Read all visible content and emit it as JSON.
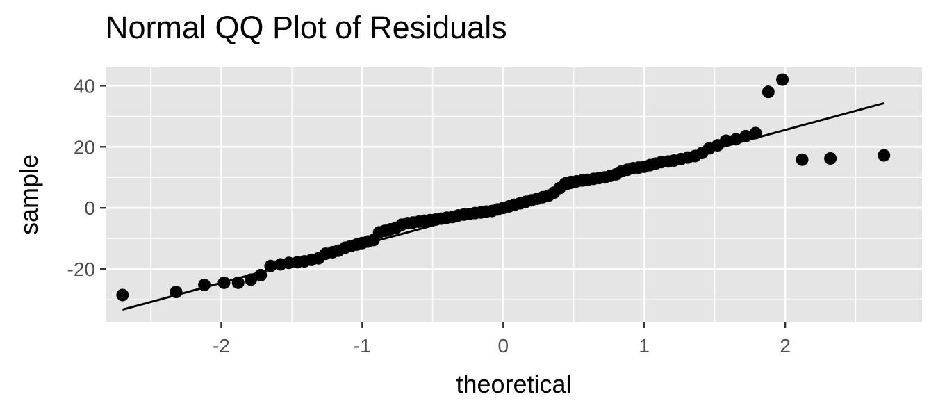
{
  "chart_data": {
    "type": "scatter",
    "title": "Normal QQ Plot of Residuals",
    "xlabel": "theoretical",
    "ylabel": "sample",
    "xlim": [
      -2.82,
      2.97
    ],
    "ylim": [
      -37.5,
      46.0
    ],
    "x_ticks": [
      -2,
      -1,
      0,
      1,
      2
    ],
    "x_tick_labels": [
      "-2",
      "-1",
      "0",
      "1",
      "2"
    ],
    "y_ticks": [
      -20,
      0,
      20,
      40
    ],
    "y_tick_labels": [
      "-20",
      "0",
      "20",
      "40"
    ],
    "grid": true,
    "legend": "none",
    "reference_line": {
      "x": [
        -2.7,
        2.7
      ],
      "y": [
        -33.3,
        34.3
      ]
    },
    "series": [
      {
        "name": "residuals",
        "x": [
          -2.7,
          -2.32,
          -2.12,
          -1.98,
          -1.88,
          -1.79,
          -1.72,
          -1.65,
          -1.58,
          -1.52,
          -1.46,
          -1.41,
          -1.36,
          -1.31,
          -1.26,
          -1.21,
          -1.17,
          -1.12,
          -1.08,
          -1.04,
          -1.0,
          -0.96,
          -0.92,
          -0.88,
          -0.84,
          -0.8,
          -0.76,
          -0.72,
          -0.68,
          -0.64,
          -0.6,
          -0.56,
          -0.52,
          -0.48,
          -0.44,
          -0.4,
          -0.36,
          -0.32,
          -0.28,
          -0.24,
          -0.2,
          -0.16,
          -0.12,
          -0.08,
          -0.04,
          0.0,
          0.04,
          0.08,
          0.12,
          0.16,
          0.2,
          0.24,
          0.28,
          0.32,
          0.36,
          0.4,
          0.44,
          0.48,
          0.52,
          0.56,
          0.6,
          0.64,
          0.68,
          0.72,
          0.76,
          0.8,
          0.84,
          0.88,
          0.92,
          0.96,
          1.0,
          1.04,
          1.08,
          1.12,
          1.17,
          1.21,
          1.26,
          1.31,
          1.36,
          1.41,
          1.46,
          1.52,
          1.58,
          1.65,
          1.72,
          1.79,
          1.88,
          1.98,
          2.12,
          2.32,
          2.7
        ],
        "y": [
          -28.5,
          -27.5,
          -25.2,
          -24.5,
          -24.5,
          -23.5,
          -22.0,
          -19.0,
          -18.5,
          -18.0,
          -17.8,
          -17.5,
          -17.0,
          -16.5,
          -15.0,
          -14.5,
          -14.0,
          -13.0,
          -12.5,
          -12.0,
          -11.5,
          -11.0,
          -10.5,
          -8.0,
          -7.5,
          -7.0,
          -6.5,
          -5.5,
          -5.0,
          -4.8,
          -4.5,
          -4.2,
          -4.0,
          -3.8,
          -3.5,
          -3.2,
          -3.0,
          -2.5,
          -2.2,
          -2.0,
          -1.7,
          -1.5,
          -1.2,
          -1.0,
          -0.5,
          0.0,
          0.5,
          1.0,
          1.5,
          2.0,
          2.5,
          3.0,
          3.5,
          4.0,
          5.0,
          6.5,
          8.0,
          8.5,
          8.7,
          9.0,
          9.2,
          9.5,
          9.8,
          10.0,
          10.5,
          11.0,
          12.0,
          12.5,
          13.0,
          13.2,
          13.5,
          14.0,
          14.5,
          15.0,
          15.2,
          15.5,
          16.0,
          16.5,
          17.0,
          18.0,
          19.5,
          20.5,
          22.0,
          22.5,
          23.5,
          24.5,
          38.0,
          42.0,
          15.8,
          16.2,
          17.2
        ]
      }
    ]
  }
}
